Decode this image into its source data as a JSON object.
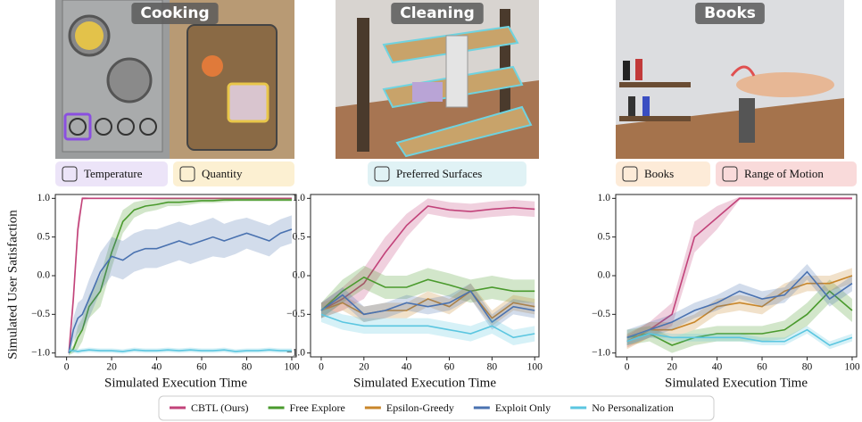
{
  "chart_data": [
    {
      "type": "line",
      "title": "Cooking",
      "features": [
        "Temperature",
        "Quantity"
      ],
      "y_label": "Simulated User Satisfaction",
      "x_label": "Simulated Execution Time",
      "x": [
        1,
        3,
        5,
        7,
        10,
        15,
        20,
        25,
        30,
        35,
        40,
        45,
        50,
        55,
        60,
        65,
        70,
        75,
        80,
        85,
        90,
        95,
        100
      ],
      "xlim": [
        -5,
        102
      ],
      "xticks": [
        0,
        20,
        40,
        60,
        80,
        100
      ],
      "ylim": [
        -1.05,
        1.05
      ],
      "yticks": [
        {
          "value": -1,
          "label": "−1.0"
        },
        {
          "value": -0.5,
          "label": "−0.5"
        },
        {
          "value": 0,
          "label": "0.0"
        },
        {
          "value": 0.5,
          "label": "0.5"
        },
        {
          "value": 1,
          "label": "1.0"
        }
      ],
      "series": [
        {
          "name": "CBTL (Ours)",
          "color": "#c2437a",
          "values": [
            -1,
            -0.3,
            0.6,
            1,
            1,
            1,
            1,
            1,
            1,
            1,
            1,
            1,
            1,
            1,
            1,
            1,
            1,
            1,
            1,
            1,
            1,
            1,
            1
          ],
          "errors": [
            0.05,
            0.15,
            0.15,
            0.02,
            0.01,
            0.01,
            0.01,
            0.01,
            0.01,
            0.01,
            0.01,
            0.01,
            0.01,
            0.01,
            0.01,
            0.01,
            0.01,
            0.01,
            0.01,
            0.01,
            0.01,
            0.01,
            0.01
          ]
        },
        {
          "name": "Free Explore",
          "color": "#4a9a2d",
          "values": [
            -1,
            -0.95,
            -0.8,
            -0.7,
            -0.4,
            -0.2,
            0.3,
            0.7,
            0.85,
            0.9,
            0.92,
            0.95,
            0.95,
            0.96,
            0.97,
            0.97,
            0.98,
            0.98,
            0.98,
            0.98,
            0.98,
            0.98,
            0.98
          ],
          "errors": [
            0.03,
            0.05,
            0.15,
            0.15,
            0.15,
            0.2,
            0.2,
            0.15,
            0.1,
            0.08,
            0.07,
            0.05,
            0.05,
            0.04,
            0.03,
            0.03,
            0.03,
            0.02,
            0.02,
            0.02,
            0.02,
            0.02,
            0.02
          ]
        },
        {
          "name": "Exploit Only",
          "color": "#4a72b0",
          "values": [
            -1,
            -0.7,
            -0.55,
            -0.5,
            -0.3,
            0.05,
            0.25,
            0.2,
            0.3,
            0.35,
            0.35,
            0.4,
            0.45,
            0.4,
            0.45,
            0.5,
            0.45,
            0.5,
            0.55,
            0.5,
            0.45,
            0.55,
            0.6
          ],
          "errors": [
            0.03,
            0.15,
            0.2,
            0.2,
            0.25,
            0.25,
            0.25,
            0.25,
            0.25,
            0.25,
            0.25,
            0.25,
            0.25,
            0.25,
            0.25,
            0.25,
            0.22,
            0.22,
            0.2,
            0.2,
            0.2,
            0.18,
            0.18
          ]
        },
        {
          "name": "No Personalization",
          "color": "#5bc6e0",
          "values": [
            -0.97,
            -0.97,
            -0.98,
            -0.97,
            -0.96,
            -0.97,
            -0.97,
            -0.98,
            -0.96,
            -0.97,
            -0.97,
            -0.96,
            -0.97,
            -0.96,
            -0.97,
            -0.97,
            -0.96,
            -0.98,
            -0.97,
            -0.97,
            -0.96,
            -0.97,
            -0.97
          ],
          "errors": [
            0.03,
            0.03,
            0.03,
            0.03,
            0.03,
            0.03,
            0.03,
            0.03,
            0.03,
            0.03,
            0.03,
            0.03,
            0.03,
            0.03,
            0.03,
            0.03,
            0.03,
            0.03,
            0.03,
            0.03,
            0.03,
            0.03,
            0.03
          ]
        }
      ]
    },
    {
      "type": "line",
      "title": "Cleaning",
      "features": [
        "Preferred Surfaces"
      ],
      "x_label": "Simulated Execution Time",
      "x": [
        0,
        10,
        20,
        30,
        40,
        50,
        60,
        70,
        80,
        90,
        100
      ],
      "xlim": [
        -5,
        102
      ],
      "xticks": [
        0,
        20,
        40,
        60,
        80,
        100
      ],
      "ylim": [
        -1.05,
        1.05
      ],
      "yticks": [
        {
          "value": -1,
          "label": "−1.0"
        },
        {
          "value": -0.5,
          "label": "−0.5"
        },
        {
          "value": 0,
          "label": "0.0"
        },
        {
          "value": 0.5,
          "label": "0.5"
        },
        {
          "value": 1,
          "label": "1.0"
        }
      ],
      "series": [
        {
          "name": "CBTL (Ours)",
          "color": "#c2437a",
          "values": [
            -0.45,
            -0.3,
            -0.1,
            0.3,
            0.65,
            0.9,
            0.85,
            0.83,
            0.86,
            0.88,
            0.86
          ],
          "errors": [
            0.1,
            0.15,
            0.2,
            0.2,
            0.15,
            0.1,
            0.1,
            0.1,
            0.1,
            0.1,
            0.1
          ]
        },
        {
          "name": "Free Explore",
          "color": "#4a9a2d",
          "values": [
            -0.45,
            -0.2,
            -0.02,
            -0.15,
            -0.15,
            -0.05,
            -0.12,
            -0.2,
            -0.15,
            -0.2,
            -0.2
          ],
          "errors": [
            0.1,
            0.15,
            0.15,
            0.15,
            0.15,
            0.15,
            0.15,
            0.15,
            0.15,
            0.15,
            0.15
          ]
        },
        {
          "name": "Epsilon-Greedy",
          "color": "#c8862a",
          "values": [
            -0.45,
            -0.35,
            -0.5,
            -0.45,
            -0.45,
            -0.3,
            -0.4,
            -0.2,
            -0.55,
            -0.35,
            -0.4
          ],
          "errors": [
            0.1,
            0.1,
            0.1,
            0.1,
            0.1,
            0.1,
            0.1,
            0.1,
            0.1,
            0.1,
            0.1
          ]
        },
        {
          "name": "Exploit Only",
          "color": "#4a72b0",
          "values": [
            -0.45,
            -0.25,
            -0.5,
            -0.45,
            -0.35,
            -0.4,
            -0.35,
            -0.2,
            -0.6,
            -0.4,
            -0.45
          ],
          "errors": [
            0.1,
            0.1,
            0.1,
            0.1,
            0.1,
            0.1,
            0.1,
            0.1,
            0.1,
            0.1,
            0.1
          ]
        },
        {
          "name": "No Personalization",
          "color": "#5bc6e0",
          "values": [
            -0.5,
            -0.6,
            -0.65,
            -0.65,
            -0.65,
            -0.65,
            -0.7,
            -0.75,
            -0.65,
            -0.8,
            -0.75
          ],
          "errors": [
            0.1,
            0.1,
            0.1,
            0.1,
            0.1,
            0.1,
            0.1,
            0.1,
            0.1,
            0.1,
            0.1
          ]
        }
      ]
    },
    {
      "type": "line",
      "title": "Books",
      "features": [
        "Books",
        "Range of Motion"
      ],
      "x_label": "Simulated Execution Time",
      "x": [
        0,
        10,
        20,
        30,
        40,
        50,
        60,
        70,
        80,
        90,
        100
      ],
      "xlim": [
        -5,
        102
      ],
      "xticks": [
        0,
        20,
        40,
        60,
        80,
        100
      ],
      "ylim": [
        -1.05,
        1.05
      ],
      "yticks": [
        {
          "value": -1,
          "label": "−1.0"
        },
        {
          "value": -0.5,
          "label": "−0.5"
        },
        {
          "value": 0,
          "label": "0.0"
        },
        {
          "value": 0.5,
          "label": "0.5"
        },
        {
          "value": 1,
          "label": "1.0"
        }
      ],
      "series": [
        {
          "name": "CBTL (Ours)",
          "color": "#c2437a",
          "values": [
            -0.85,
            -0.7,
            -0.5,
            0.5,
            0.75,
            1,
            1,
            1,
            1,
            1,
            1
          ],
          "errors": [
            0.08,
            0.1,
            0.15,
            0.2,
            0.15,
            0.02,
            0.02,
            0.02,
            0.02,
            0.02,
            0.02
          ]
        },
        {
          "name": "Free Explore",
          "color": "#4a9a2d",
          "values": [
            -0.8,
            -0.75,
            -0.9,
            -0.8,
            -0.75,
            -0.75,
            -0.75,
            -0.7,
            -0.5,
            -0.2,
            -0.45
          ],
          "errors": [
            0.1,
            0.1,
            0.1,
            0.1,
            0.1,
            0.1,
            0.1,
            0.12,
            0.15,
            0.15,
            0.15
          ]
        },
        {
          "name": "Epsilon-Greedy",
          "color": "#c8862a",
          "values": [
            -0.85,
            -0.7,
            -0.7,
            -0.6,
            -0.4,
            -0.35,
            -0.4,
            -0.2,
            -0.1,
            -0.1,
            0
          ],
          "errors": [
            0.1,
            0.1,
            0.1,
            0.1,
            0.1,
            0.1,
            0.1,
            0.1,
            0.1,
            0.1,
            0.1
          ]
        },
        {
          "name": "Exploit Only",
          "color": "#4a72b0",
          "values": [
            -0.8,
            -0.7,
            -0.6,
            -0.45,
            -0.35,
            -0.2,
            -0.3,
            -0.25,
            0.05,
            -0.3,
            -0.1
          ],
          "errors": [
            0.1,
            0.1,
            0.1,
            0.1,
            0.1,
            0.1,
            0.1,
            0.1,
            0.1,
            0.1,
            0.1
          ]
        },
        {
          "name": "No Personalization",
          "color": "#5bc6e0",
          "values": [
            -0.85,
            -0.75,
            -0.8,
            -0.8,
            -0.8,
            -0.8,
            -0.85,
            -0.85,
            -0.7,
            -0.9,
            -0.8
          ],
          "errors": [
            0.05,
            0.05,
            0.05,
            0.05,
            0.05,
            0.05,
            0.05,
            0.05,
            0.05,
            0.05,
            0.05
          ]
        }
      ]
    }
  ]
}
